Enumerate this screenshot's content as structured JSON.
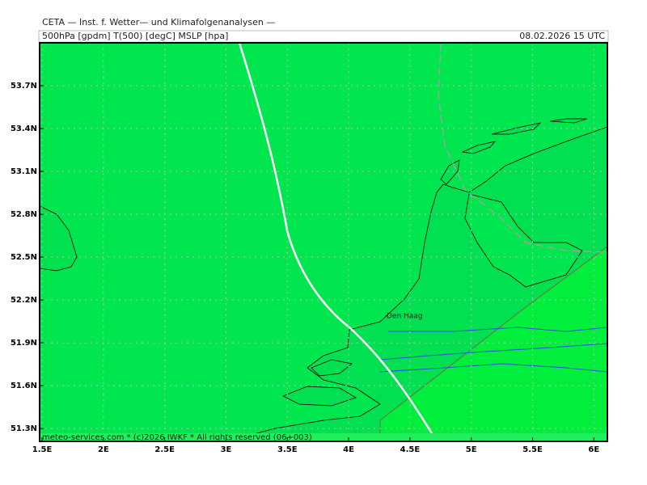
{
  "header": {
    "title": "CETA — Inst. f. Wetter— und Klimafolgenanalysen —",
    "fields": "500hPa [gpdm] T(500) [degC] MSLP [hpa]",
    "valid_time": "08.02.2026 15 UTC"
  },
  "map": {
    "xlim": [
      1.48,
      6.11
    ],
    "ylim": [
      51.21,
      54.0
    ],
    "xticks": [
      {
        "value": 1.5,
        "label": "1.5E"
      },
      {
        "value": 2,
        "label": "2E"
      },
      {
        "value": 2.5,
        "label": "2.5E"
      },
      {
        "value": 3,
        "label": "3E"
      },
      {
        "value": 3.5,
        "label": "3.5E"
      },
      {
        "value": 4,
        "label": "4E"
      },
      {
        "value": 4.5,
        "label": "4.5E"
      },
      {
        "value": 5,
        "label": "5E"
      },
      {
        "value": 5.5,
        "label": "5.5E"
      },
      {
        "value": 6,
        "label": "6E"
      }
    ],
    "yticks": [
      {
        "value": 51.3,
        "label": "51.3N"
      },
      {
        "value": 51.6,
        "label": "51.6N"
      },
      {
        "value": 51.9,
        "label": "51.9N"
      },
      {
        "value": 52.2,
        "label": "52.2N"
      },
      {
        "value": 52.5,
        "label": "52.5N"
      },
      {
        "value": 52.8,
        "label": "52.8N"
      },
      {
        "value": 53.1,
        "label": "53.1N"
      },
      {
        "value": 53.4,
        "label": "53.4N"
      },
      {
        "value": 53.7,
        "label": "53.7N"
      }
    ],
    "city": "Den Haag",
    "footer": "meteo-services.com * (c)2026 IWKF * All rights reserved (06+003)"
  }
}
